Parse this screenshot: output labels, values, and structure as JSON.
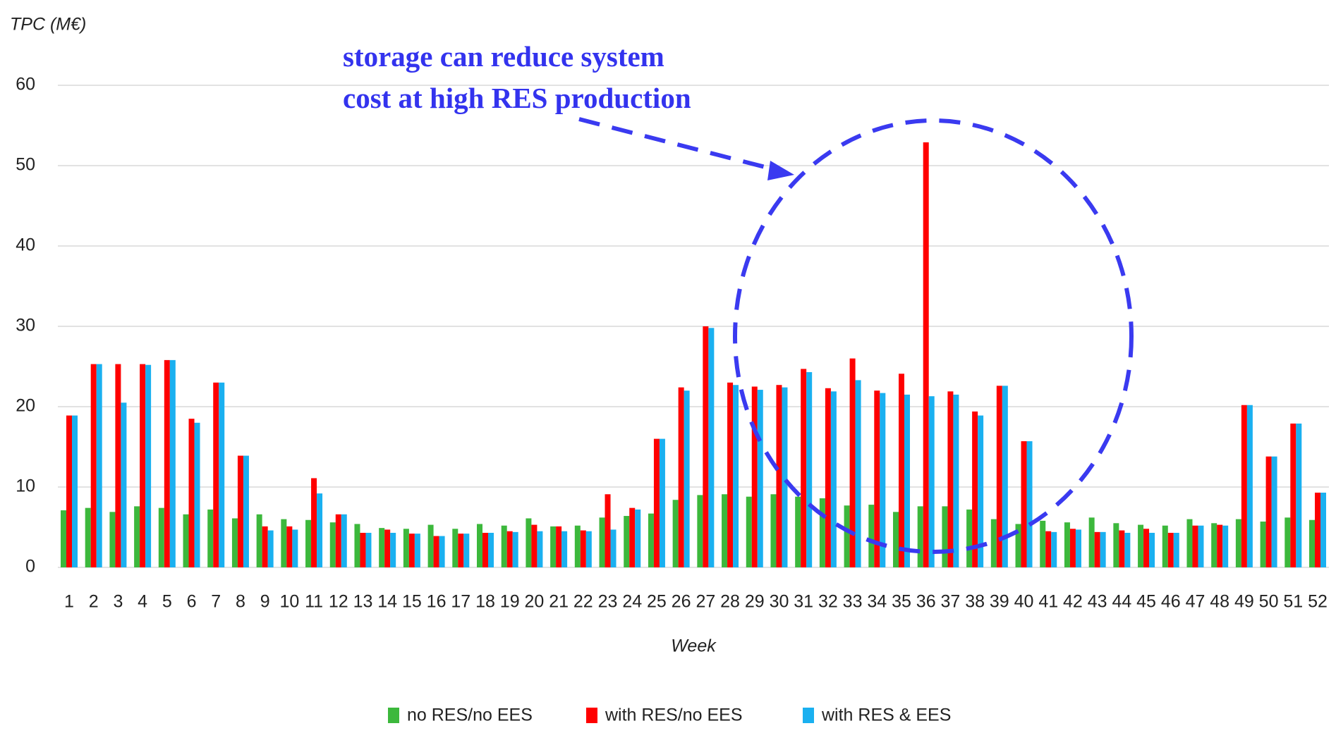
{
  "chart_data": {
    "type": "bar",
    "y_label": "TPC (M€)",
    "x_label": "Week",
    "annotation": [
      "storage can reduce system",
      "cost at high RES production"
    ],
    "categories": [
      "1",
      "2",
      "3",
      "4",
      "5",
      "6",
      "7",
      "8",
      "9",
      "10",
      "11",
      "12",
      "13",
      "14",
      "15",
      "16",
      "17",
      "18",
      "19",
      "20",
      "21",
      "22",
      "23",
      "24",
      "25",
      "26",
      "27",
      "28",
      "29",
      "30",
      "31",
      "32",
      "33",
      "34",
      "35",
      "36",
      "37",
      "38",
      "39",
      "40",
      "41",
      "42",
      "43",
      "44",
      "45",
      "46",
      "47",
      "48",
      "49",
      "50",
      "51",
      "52"
    ],
    "series": [
      {
        "name": "no RES/no EES",
        "color": "#3cb83c",
        "values": [
          7.1,
          7.4,
          6.9,
          7.6,
          7.4,
          6.6,
          7.2,
          6.1,
          6.6,
          6.0,
          5.9,
          5.6,
          5.4,
          4.9,
          4.8,
          5.3,
          4.8,
          5.4,
          5.2,
          6.1,
          5.1,
          5.2,
          6.2,
          6.4,
          6.7,
          8.4,
          9.0,
          9.1,
          8.8,
          9.1,
          8.8,
          8.6,
          7.7,
          7.8,
          6.9,
          7.6,
          7.6,
          7.2,
          6.0,
          5.4,
          5.8,
          5.6,
          6.2,
          5.5,
          5.3,
          5.2,
          6.0,
          5.5,
          6.0,
          5.7,
          6.2,
          5.9
        ]
      },
      {
        "name": "with RES/no EES",
        "color": "#ff0000",
        "values": [
          18.9,
          25.3,
          25.3,
          25.3,
          25.8,
          18.5,
          23.0,
          13.9,
          5.1,
          5.1,
          11.1,
          6.6,
          4.3,
          4.7,
          4.2,
          3.9,
          4.2,
          4.3,
          4.5,
          5.3,
          5.1,
          4.6,
          9.1,
          7.4,
          16.0,
          22.4,
          30.0,
          23.0,
          22.5,
          22.7,
          24.7,
          22.3,
          26.0,
          22.0,
          24.1,
          52.9,
          21.9,
          19.4,
          22.6,
          15.7,
          4.5,
          4.8,
          4.4,
          4.6,
          4.8,
          4.3,
          5.2,
          5.3,
          20.2,
          13.8,
          17.9,
          9.3
        ]
      },
      {
        "name": "with RES & EES",
        "color": "#1ab0f0",
        "values": [
          18.9,
          25.3,
          20.5,
          25.2,
          25.8,
          18.0,
          23.0,
          13.9,
          4.6,
          4.7,
          9.2,
          6.6,
          4.3,
          4.3,
          4.2,
          3.9,
          4.2,
          4.3,
          4.4,
          4.5,
          4.5,
          4.5,
          4.7,
          7.2,
          16.0,
          22.0,
          29.8,
          22.7,
          22.1,
          22.4,
          24.3,
          21.9,
          23.3,
          21.7,
          21.5,
          21.3,
          21.5,
          18.9,
          22.6,
          15.7,
          4.4,
          4.7,
          4.4,
          4.3,
          4.3,
          4.3,
          5.2,
          5.2,
          20.2,
          13.8,
          17.9,
          9.3
        ]
      }
    ],
    "ylim": [
      0,
      60
    ],
    "yticks": [
      0,
      10,
      20,
      30,
      40,
      50,
      60
    ],
    "grid": true
  }
}
